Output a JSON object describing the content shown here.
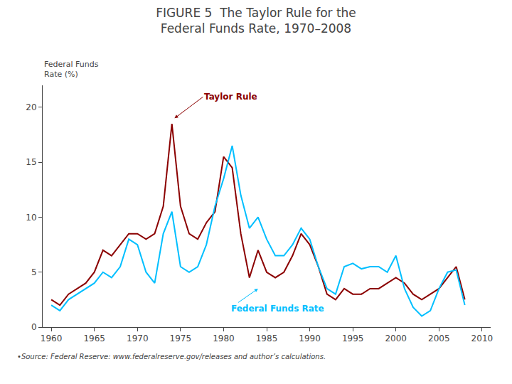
{
  "chart_data": {
    "type": "line",
    "title": "FIGURE 5  The Taylor Rule for the\nFederal Funds Rate, 1970–2008",
    "ylabel": "Federal Funds\nRate (%)",
    "source": "•Source: Federal Reserve: www.federalreserve.gov/releases and author’s calculations.",
    "x": [
      1960,
      1961,
      1962,
      1963,
      1964,
      1965,
      1966,
      1967,
      1968,
      1969,
      1970,
      1971,
      1972,
      1973,
      1974,
      1975,
      1976,
      1977,
      1978,
      1979,
      1980,
      1981,
      1982,
      1983,
      1984,
      1985,
      1986,
      1987,
      1988,
      1989,
      1990,
      1991,
      1992,
      1993,
      1994,
      1995,
      1996,
      1997,
      1998,
      1999,
      2000,
      2001,
      2002,
      2003,
      2004,
      2005,
      2006,
      2007,
      2008
    ],
    "series": [
      {
        "name": "Taylor Rule",
        "color": "#8B0000",
        "values": [
          2.5,
          2.0,
          3.0,
          3.5,
          4.0,
          5.0,
          7.0,
          6.5,
          7.5,
          8.5,
          8.5,
          8.0,
          8.5,
          11.0,
          18.5,
          11.0,
          8.5,
          8.0,
          9.5,
          10.5,
          15.5,
          14.5,
          8.5,
          4.5,
          7.0,
          5.0,
          4.5,
          5.0,
          6.5,
          8.5,
          7.5,
          5.5,
          3.0,
          2.5,
          3.5,
          3.0,
          3.0,
          3.5,
          3.5,
          4.0,
          4.5,
          4.0,
          3.0,
          2.5,
          3.0,
          3.5,
          4.5,
          5.5,
          2.5
        ]
      },
      {
        "name": "Federal Funds Rate",
        "color": "#00BFFF",
        "values": [
          2.0,
          1.5,
          2.5,
          3.0,
          3.5,
          4.0,
          5.0,
          4.5,
          5.5,
          8.0,
          7.5,
          5.0,
          4.0,
          8.5,
          10.5,
          5.5,
          5.0,
          5.5,
          7.5,
          11.0,
          13.5,
          16.5,
          12.0,
          9.0,
          10.0,
          8.0,
          6.5,
          6.5,
          7.5,
          9.0,
          8.0,
          5.5,
          3.5,
          3.0,
          5.5,
          5.8,
          5.3,
          5.5,
          5.5,
          5.0,
          6.5,
          3.5,
          1.8,
          1.0,
          1.5,
          3.5,
          5.0,
          5.2,
          2.0
        ]
      }
    ],
    "annotations": [
      {
        "text": "Taylor Rule",
        "x": 1974.3,
        "y": 19.0,
        "color": "#8B0000"
      },
      {
        "text": "Federal Funds Rate",
        "x": 1984.0,
        "y": 3.5,
        "color": "#00BFFF"
      }
    ],
    "xlim": [
      1959,
      2011
    ],
    "xticks": [
      1960,
      1965,
      1970,
      1975,
      1980,
      1985,
      1990,
      1995,
      2000,
      2005,
      2010
    ],
    "ylim": [
      0,
      22
    ],
    "yticks": [
      0,
      5,
      10,
      15,
      20
    ],
    "grid": false
  }
}
